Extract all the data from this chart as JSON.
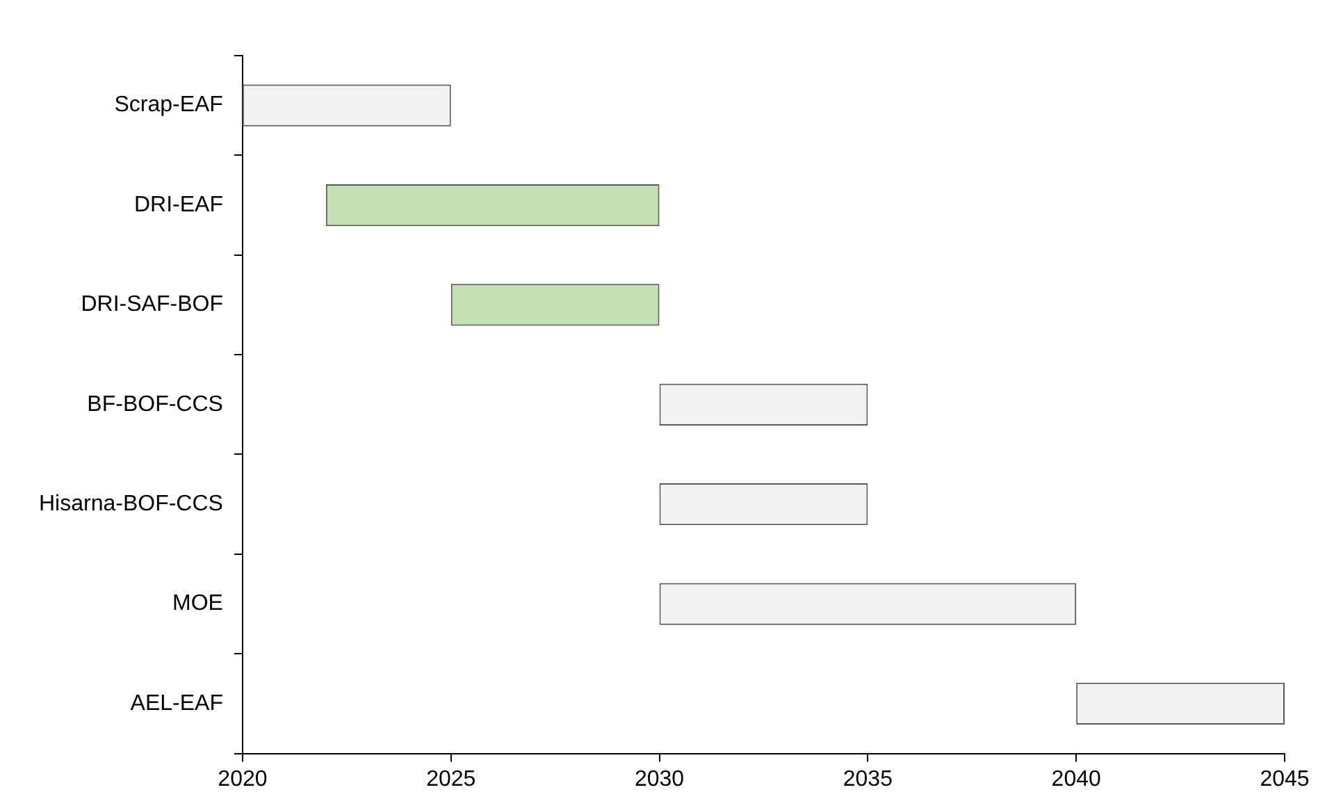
{
  "chart_data": {
    "type": "bar",
    "orientation": "horizontal",
    "categories": [
      "Scrap-EAF",
      "DRI-EAF",
      "DRI-SAF-BOF",
      "BF-BOF-CCS",
      "Hisarna-BOF-CCS",
      "MOE",
      "AEL-EAF"
    ],
    "base": [
      2020,
      2022,
      2025,
      2030,
      2030,
      2030,
      2040
    ],
    "values": [
      5,
      8,
      5,
      5,
      5,
      10,
      5
    ],
    "colors": [
      "#f2f2f2",
      "#c5e0b4",
      "#c5e0b4",
      "#f2f2f2",
      "#f2f2f2",
      "#f2f2f2",
      "#f2f2f2"
    ],
    "xlim": [
      2020,
      2045
    ],
    "xticks": [
      2020,
      2025,
      2030,
      2035,
      2040,
      2045
    ],
    "grid": false,
    "legend": false
  }
}
